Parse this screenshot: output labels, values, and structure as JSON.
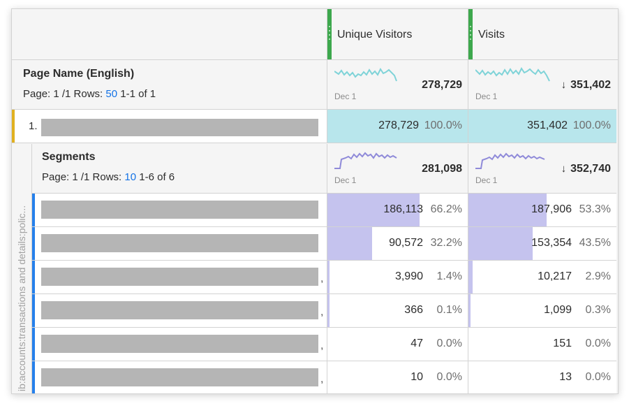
{
  "columns": [
    {
      "label": "Unique Visitors"
    },
    {
      "label": "Visits"
    }
  ],
  "dimension": {
    "title": "Page Name (English)",
    "page_text": "Page: 1 /1 Rows:",
    "rows_value": "50",
    "range": "1-1 of 1",
    "totals": [
      {
        "date": "Dec 1",
        "value": "278,729",
        "sorted": false
      },
      {
        "date": "Dec 1",
        "value": "351,402",
        "sorted": true
      }
    ],
    "sort_arrow": "↓"
  },
  "item_row": {
    "index": "1.",
    "cells": [
      {
        "value": "278,729",
        "pct": "100.0%"
      },
      {
        "value": "351,402",
        "pct": "100.0%"
      }
    ]
  },
  "segments": {
    "side_label": "ib:accounts:transactions and details:polic...",
    "title": "Segments",
    "page_text": "Page: 1 /1 Rows:",
    "rows_value": "10",
    "range": "1-6 of 6",
    "totals": [
      {
        "date": "Dec 1",
        "value": "281,098",
        "sorted": false
      },
      {
        "date": "Dec 1",
        "value": "352,740",
        "sorted": true
      }
    ],
    "sort_arrow": "↓",
    "rows": [
      {
        "suffix": "",
        "cells": [
          {
            "value": "186,113",
            "pct": "66.2%",
            "share": 0.662
          },
          {
            "value": "187,906",
            "pct": "53.3%",
            "share": 0.533
          }
        ]
      },
      {
        "suffix": "",
        "cells": [
          {
            "value": "90,572",
            "pct": "32.2%",
            "share": 0.322
          },
          {
            "value": "153,354",
            "pct": "43.5%",
            "share": 0.435
          }
        ]
      },
      {
        "suffix": ",",
        "cells": [
          {
            "value": "3,990",
            "pct": "1.4%",
            "share": 0.014
          },
          {
            "value": "10,217",
            "pct": "2.9%",
            "share": 0.029
          }
        ]
      },
      {
        "suffix": ",",
        "cells": [
          {
            "value": "366",
            "pct": "0.1%",
            "share": 0.001
          },
          {
            "value": "1,099",
            "pct": "0.3%",
            "share": 0.003
          }
        ]
      },
      {
        "suffix": ",",
        "cells": [
          {
            "value": "47",
            "pct": "0.0%",
            "share": 0.0
          },
          {
            "value": "151",
            "pct": "0.0%",
            "share": 0.0
          }
        ]
      },
      {
        "suffix": ",",
        "cells": [
          {
            "value": "10",
            "pct": "0.0%",
            "share": 0.0
          },
          {
            "value": "13",
            "pct": "0.0%",
            "share": 0.0
          }
        ]
      }
    ]
  },
  "colors": {
    "header_grip": "#3da84d",
    "item_highlight": "#b8e6ec",
    "item_marker": "#e0b020",
    "segment_marker": "#2680eb",
    "share_bar": "#c5c3ee",
    "sparkline_page": "#7fd3d8",
    "sparkline_segment": "#8f8ad9",
    "link_blue": "#1473e6"
  },
  "icons": {
    "sort": "sort-descending-icon",
    "grip": "drag-handle-icon"
  }
}
